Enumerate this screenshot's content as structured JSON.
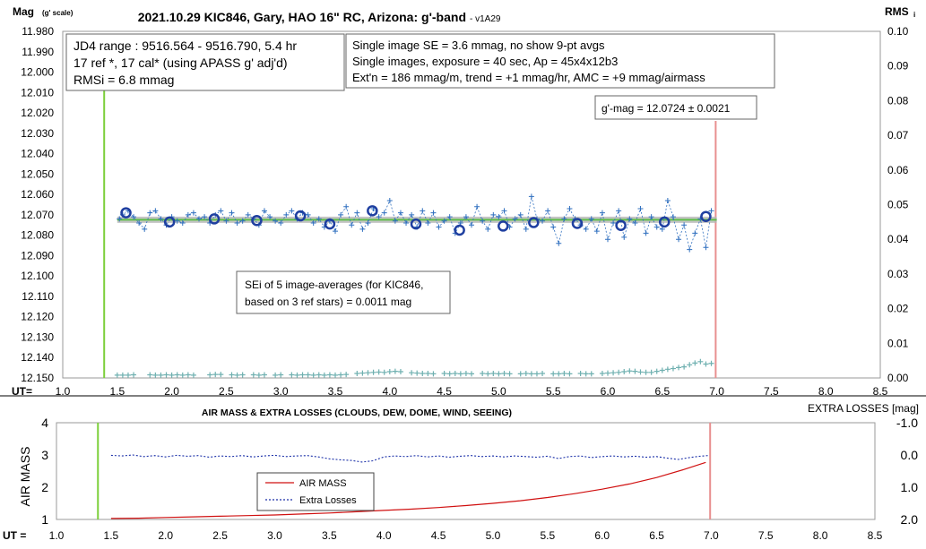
{
  "chart_data": [
    {
      "type": "line",
      "title": "2021.10.29 KIC846, Gary, HAO 16\" RC, Arizona: g'-band",
      "title_suffix": "- v1A29",
      "ylabel_left": "Mag",
      "ylabel_left_sub": "(g' scale)",
      "ylabel_right": "RMS",
      "ylabel_right_sub": "i",
      "x_row_label": "UT=",
      "xlim": [
        1.0,
        8.5
      ],
      "x_ticks": [
        "1.0",
        "1.5",
        "2.0",
        "2.5",
        "3.0",
        "3.5",
        "4.0",
        "4.5",
        "5.0",
        "5.5",
        "6.0",
        "6.5",
        "7.0",
        "7.5",
        "8.0",
        "8.5"
      ],
      "ylim_left": [
        12.15,
        11.98
      ],
      "y_left_ticks": [
        "11.980",
        "11.990",
        "12.000",
        "12.010",
        "12.020",
        "12.030",
        "12.040",
        "12.050",
        "12.060",
        "12.070",
        "12.080",
        "12.090",
        "12.100",
        "12.110",
        "12.120",
        "12.130",
        "12.140",
        "12.150"
      ],
      "ylim_right": [
        0.0,
        0.1
      ],
      "y_right_ticks": [
        "0.00",
        "0.01",
        "0.02",
        "0.03",
        "0.04",
        "0.05",
        "0.06",
        "0.07",
        "0.08",
        "0.09",
        "0.10"
      ],
      "grid": false,
      "vertical_markers": {
        "start_ut": 1.38,
        "end_ut": 6.99
      },
      "mean_mag": 12.0724,
      "annotations": {
        "info_left": [
          "JD4 range : 9516.564 - 9516.790,  5.4  hr",
          "17 ref *, 17 cal* (using APASS g' adj'd)",
          "RMSi = 6.8 mmag"
        ],
        "info_right": [
          "Single image SE = 3.6 mmag, no show  9-pt avgs",
          "Single images, exposure = 40 sec, Ap = 45x4x12b3",
          "Ext'n = 186 mmag/m, trend = +1 mmag/hr, AMC = +9 mmag/airmass"
        ],
        "gmag": "g'-mag = 12.0724 ± 0.0021",
        "sei": [
          "SEi of 5 image-averages (for KIC846,",
          "based on 3 ref stars) = 0.0011 mag"
        ]
      },
      "series": [
        {
          "name": "5-image averages",
          "marker": "circle",
          "color": "#1f3fa0",
          "x": [
            1.58,
            1.98,
            2.39,
            2.78,
            3.18,
            3.45,
            3.84,
            4.24,
            4.64,
            5.04,
            5.32,
            5.72,
            6.12,
            6.52,
            6.9
          ],
          "y": [
            12.069,
            12.0735,
            12.072,
            12.0728,
            12.0705,
            12.0745,
            12.068,
            12.0745,
            12.0775,
            12.0755,
            12.0738,
            12.0742,
            12.0752,
            12.0735,
            12.0708
          ]
        },
        {
          "name": "single images",
          "marker": "plus",
          "color": "#2f6fbf",
          "x": [
            1.52,
            1.55,
            1.6,
            1.65,
            1.7,
            1.75,
            1.8,
            1.85,
            1.9,
            1.95,
            2.0,
            2.05,
            2.1,
            2.15,
            2.2,
            2.25,
            2.3,
            2.35,
            2.4,
            2.45,
            2.5,
            2.55,
            2.6,
            2.65,
            2.7,
            2.75,
            2.8,
            2.85,
            2.9,
            2.95,
            3.0,
            3.05,
            3.1,
            3.15,
            3.2,
            3.25,
            3.3,
            3.35,
            3.4,
            3.45,
            3.5,
            3.55,
            3.6,
            3.65,
            3.7,
            3.75,
            3.8,
            3.85,
            3.9,
            3.95,
            4.0,
            4.05,
            4.1,
            4.15,
            4.2,
            4.25,
            4.3,
            4.35,
            4.4,
            4.45,
            4.5,
            4.55,
            4.6,
            4.65,
            4.7,
            4.75,
            4.8,
            4.85,
            4.9,
            4.95,
            5.0,
            5.05,
            5.1,
            5.15,
            5.2,
            5.25,
            5.3,
            5.35,
            5.4,
            5.45,
            5.5,
            5.55,
            5.6,
            5.65,
            5.7,
            5.75,
            5.8,
            5.85,
            5.9,
            5.95,
            6.0,
            6.05,
            6.1,
            6.15,
            6.2,
            6.25,
            6.3,
            6.35,
            6.4,
            6.45,
            6.5,
            6.55,
            6.6,
            6.65,
            6.7,
            6.75,
            6.8,
            6.85,
            6.9,
            6.95
          ],
          "y": [
            12.072,
            12.07,
            12.068,
            12.071,
            12.074,
            12.077,
            12.069,
            12.068,
            12.072,
            12.075,
            12.071,
            12.073,
            12.074,
            12.07,
            12.069,
            12.072,
            12.071,
            12.074,
            12.07,
            12.068,
            12.073,
            12.069,
            12.074,
            12.073,
            12.07,
            12.072,
            12.075,
            12.068,
            12.071,
            12.073,
            12.074,
            12.07,
            12.068,
            12.072,
            12.069,
            12.07,
            12.074,
            12.072,
            12.076,
            12.073,
            12.078,
            12.07,
            12.066,
            12.075,
            12.069,
            12.077,
            12.074,
            12.067,
            12.071,
            12.069,
            12.063,
            12.073,
            12.069,
            12.074,
            12.07,
            12.076,
            12.068,
            12.074,
            12.069,
            12.076,
            12.073,
            12.071,
            12.079,
            12.074,
            12.071,
            12.075,
            12.066,
            12.073,
            12.077,
            12.07,
            12.071,
            12.068,
            12.076,
            12.072,
            12.07,
            12.077,
            12.061,
            12.072,
            12.073,
            12.068,
            12.076,
            12.084,
            12.072,
            12.067,
            12.072,
            12.075,
            12.077,
            12.072,
            12.078,
            12.069,
            12.082,
            12.074,
            12.068,
            12.081,
            12.072,
            12.074,
            12.067,
            12.079,
            12.071,
            12.076,
            12.077,
            12.063,
            12.071,
            12.082,
            12.075,
            12.087,
            12.079,
            12.072,
            12.086,
            12.068
          ]
        },
        {
          "name": "RMS",
          "marker": "plus",
          "color": "#6fb0b0",
          "x": [
            1.5,
            1.55,
            1.6,
            1.65,
            1.8,
            1.85,
            1.9,
            1.95,
            2.0,
            2.05,
            2.1,
            2.15,
            2.2,
            2.35,
            2.4,
            2.45,
            2.55,
            2.6,
            2.65,
            2.75,
            2.8,
            2.85,
            2.95,
            3.0,
            3.1,
            3.15,
            3.2,
            3.25,
            3.3,
            3.35,
            3.4,
            3.45,
            3.5,
            3.55,
            3.6,
            3.7,
            3.75,
            3.8,
            3.85,
            3.9,
            3.95,
            4.0,
            4.05,
            4.1,
            4.2,
            4.25,
            4.3,
            4.35,
            4.4,
            4.5,
            4.55,
            4.6,
            4.65,
            4.7,
            4.75,
            4.85,
            4.9,
            4.95,
            5.0,
            5.05,
            5.1,
            5.2,
            5.25,
            5.3,
            5.35,
            5.4,
            5.5,
            5.55,
            5.6,
            5.65,
            5.75,
            5.8,
            5.85,
            5.95,
            6.0,
            6.05,
            6.1,
            6.15,
            6.2,
            6.25,
            6.3,
            6.35,
            6.4,
            6.45,
            6.5,
            6.55,
            6.6,
            6.65,
            6.7,
            6.75,
            6.8,
            6.85,
            6.9,
            6.95
          ],
          "y": [
            0.0008,
            0.0008,
            0.0008,
            0.0009,
            0.0009,
            0.0008,
            0.0008,
            0.0009,
            0.0008,
            0.0009,
            0.0008,
            0.0009,
            0.0008,
            0.0009,
            0.001,
            0.001,
            0.0009,
            0.0008,
            0.0009,
            0.0009,
            0.0008,
            0.0009,
            0.0008,
            0.0009,
            0.0009,
            0.0008,
            0.0009,
            0.0009,
            0.0008,
            0.0009,
            0.0008,
            0.0009,
            0.0008,
            0.0009,
            0.001,
            0.0013,
            0.0014,
            0.0015,
            0.0016,
            0.0017,
            0.0016,
            0.0018,
            0.0019,
            0.0018,
            0.0015,
            0.0014,
            0.0013,
            0.0013,
            0.0012,
            0.0013,
            0.0012,
            0.0013,
            0.0012,
            0.0013,
            0.0012,
            0.0013,
            0.0012,
            0.0013,
            0.0012,
            0.0013,
            0.0012,
            0.0012,
            0.0013,
            0.0012,
            0.0012,
            0.0013,
            0.0012,
            0.0012,
            0.0013,
            0.0012,
            0.0013,
            0.0012,
            0.0012,
            0.0013,
            0.0014,
            0.0015,
            0.0016,
            0.0018,
            0.002,
            0.0019,
            0.0017,
            0.0016,
            0.0016,
            0.0019,
            0.0022,
            0.0025,
            0.0027,
            0.003,
            0.0032,
            0.0038,
            0.0043,
            0.0047,
            0.004,
            0.0042
          ]
        }
      ]
    },
    {
      "type": "line",
      "title": "AIR MASS & EXTRA LOSSES (CLOUDS, DEW, DOME, WIND, SEEING)",
      "ylabel_left": "AIR MASS",
      "ylabel_right": "EXTRA LOSSES [mag]",
      "x_row_label": "UT =",
      "xlim": [
        1.0,
        8.5
      ],
      "x_ticks": [
        "1.0",
        "1.5",
        "2.0",
        "2.5",
        "3.0",
        "3.5",
        "4.0",
        "4.5",
        "5.0",
        "5.5",
        "6.0",
        "6.5",
        "7.0",
        "7.5",
        "8.0",
        "8.5"
      ],
      "ylim_left": [
        1,
        4
      ],
      "y_left_ticks": [
        "1",
        "2",
        "3",
        "4"
      ],
      "ylim_right": [
        2.0,
        -1.0
      ],
      "y_right_ticks": [
        "2.0",
        "1.0",
        "0.0",
        "-1.0"
      ],
      "grid": false,
      "legend": {
        "position": "center-left",
        "entries": [
          "AIR MASS",
          "Extra Losses"
        ]
      },
      "series": [
        {
          "name": "AIR MASS",
          "color": "#d01010",
          "x": [
            1.5,
            1.75,
            2.0,
            2.25,
            2.5,
            2.75,
            3.0,
            3.25,
            3.5,
            3.75,
            4.0,
            4.25,
            4.5,
            4.75,
            5.0,
            5.25,
            5.5,
            5.75,
            6.0,
            6.25,
            6.5,
            6.75,
            6.95
          ],
          "y": [
            1.03,
            1.04,
            1.06,
            1.08,
            1.1,
            1.12,
            1.14,
            1.17,
            1.2,
            1.24,
            1.28,
            1.32,
            1.37,
            1.43,
            1.5,
            1.58,
            1.68,
            1.8,
            1.94,
            2.1,
            2.3,
            2.55,
            2.77
          ]
        },
        {
          "name": "Extra Losses",
          "color": "#1a2fa8",
          "x": [
            1.5,
            1.6,
            1.7,
            1.8,
            1.9,
            2.0,
            2.1,
            2.2,
            2.3,
            2.4,
            2.5,
            2.6,
            2.7,
            2.8,
            2.9,
            3.0,
            3.1,
            3.2,
            3.3,
            3.4,
            3.5,
            3.6,
            3.7,
            3.8,
            3.9,
            4.0,
            4.1,
            4.2,
            4.3,
            4.4,
            4.5,
            4.6,
            4.7,
            4.8,
            4.9,
            5.0,
            5.1,
            5.2,
            5.3,
            5.4,
            5.5,
            5.6,
            5.7,
            5.8,
            5.9,
            6.0,
            6.1,
            6.2,
            6.3,
            6.4,
            6.5,
            6.6,
            6.7,
            6.8,
            6.9,
            6.97
          ],
          "y": [
            0.01,
            0.03,
            0.0,
            0.05,
            0.02,
            0.06,
            0.01,
            0.04,
            0.02,
            0.07,
            0.03,
            0.05,
            0.02,
            0.06,
            0.03,
            0.01,
            0.05,
            0.03,
            0.02,
            0.06,
            0.12,
            0.15,
            0.17,
            0.22,
            0.18,
            0.06,
            0.03,
            0.05,
            0.02,
            0.06,
            0.03,
            0.07,
            0.04,
            0.02,
            0.05,
            0.03,
            0.06,
            0.03,
            0.05,
            0.07,
            0.04,
            0.11,
            0.05,
            0.03,
            0.08,
            0.05,
            0.03,
            0.06,
            0.04,
            0.07,
            0.05,
            0.1,
            0.14,
            0.08,
            0.04,
            0.02
          ]
        }
      ]
    }
  ]
}
